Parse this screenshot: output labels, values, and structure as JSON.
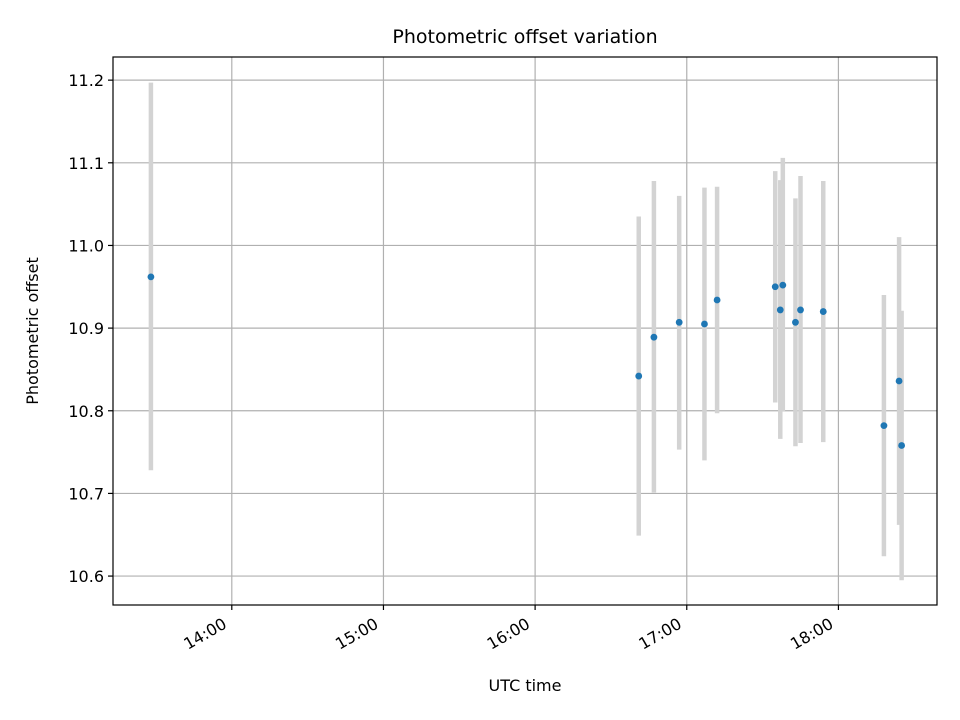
{
  "chart_data": {
    "type": "scatter",
    "title": "Photometric offset variation",
    "xlabel": "UTC time",
    "ylabel": "Photometric offset",
    "x_axis_type": "time",
    "xlim": [
      "13:13",
      "18:39"
    ],
    "ylim": [
      10.565,
      11.228
    ],
    "x_ticks": [
      "14:00",
      "15:00",
      "16:00",
      "17:00",
      "18:00"
    ],
    "y_ticks": [
      "10.6",
      "10.7",
      "10.8",
      "10.9",
      "11.0",
      "11.1",
      "11.2"
    ],
    "grid": true,
    "colors": {
      "marker": "#1f77b4",
      "errorbar": "#d3d3d3",
      "grid": "#b0b0b0"
    },
    "points": [
      {
        "x": "13:28",
        "y": 10.962,
        "ymin": 10.728,
        "ymax": 11.197
      },
      {
        "x": "16:41",
        "y": 10.842,
        "ymin": 10.649,
        "ymax": 11.035
      },
      {
        "x": "16:47",
        "y": 10.889,
        "ymin": 10.701,
        "ymax": 11.078
      },
      {
        "x": "16:57",
        "y": 10.907,
        "ymin": 10.753,
        "ymax": 11.06
      },
      {
        "x": "17:07",
        "y": 10.905,
        "ymin": 10.74,
        "ymax": 11.07
      },
      {
        "x": "17:12",
        "y": 10.934,
        "ymin": 10.797,
        "ymax": 11.071
      },
      {
        "x": "17:35",
        "y": 10.95,
        "ymin": 10.81,
        "ymax": 11.09
      },
      {
        "x": "17:37",
        "y": 10.922,
        "ymin": 10.766,
        "ymax": 11.079
      },
      {
        "x": "17:38",
        "y": 10.952,
        "ymin": 10.799,
        "ymax": 11.106
      },
      {
        "x": "17:43",
        "y": 10.907,
        "ymin": 10.757,
        "ymax": 11.057
      },
      {
        "x": "17:45",
        "y": 10.922,
        "ymin": 10.761,
        "ymax": 11.084
      },
      {
        "x": "17:54",
        "y": 10.92,
        "ymin": 10.762,
        "ymax": 11.078
      },
      {
        "x": "18:18",
        "y": 10.782,
        "ymin": 10.624,
        "ymax": 10.94
      },
      {
        "x": "18:24",
        "y": 10.836,
        "ymin": 10.662,
        "ymax": 11.01
      },
      {
        "x": "18:25",
        "y": 10.758,
        "ymin": 10.595,
        "ymax": 10.921
      }
    ]
  }
}
